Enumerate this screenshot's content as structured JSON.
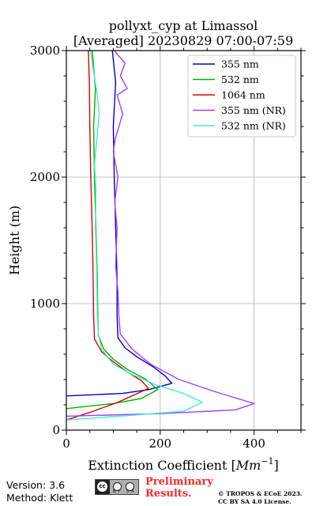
{
  "chart_data": {
    "type": "line",
    "title_line1": "pollyxt_cyp at Limassol",
    "title_line2": "[Averaged] 20230829 07:00-07:59",
    "xlabel": "Extinction Coefficient [",
    "xlabel_unit": "Mm",
    "xlabel_sup": "−1",
    "xlabel_end": "]",
    "ylabel": "Height (m)",
    "xlim": [
      0,
      500
    ],
    "ylim": [
      0,
      3000
    ],
    "xticks": [
      0,
      200,
      400
    ],
    "yticks": [
      0,
      1000,
      2000,
      3000
    ],
    "x_minor_step": 50,
    "y_minor_step": 200,
    "grid": true,
    "legend_position": "top-right",
    "series": [
      {
        "name": "355 nm",
        "color": "#0000cc",
        "points": [
          [
            0,
            270
          ],
          [
            120,
            290
          ],
          [
            175,
            320
          ],
          [
            225,
            370
          ],
          [
            210,
            430
          ],
          [
            185,
            500
          ],
          [
            150,
            580
          ],
          [
            125,
            650
          ],
          [
            110,
            730
          ],
          [
            108,
            900
          ],
          [
            108,
            1200
          ],
          [
            105,
            1600
          ],
          [
            102,
            2000
          ],
          [
            100,
            2400
          ],
          [
            105,
            2750
          ],
          [
            98,
            3000
          ]
        ]
      },
      {
        "name": "532 nm",
        "color": "#00b400",
        "points": [
          [
            0,
            170
          ],
          [
            100,
            210
          ],
          [
            160,
            250
          ],
          [
            195,
            320
          ],
          [
            170,
            400
          ],
          [
            130,
            480
          ],
          [
            100,
            560
          ],
          [
            80,
            640
          ],
          [
            68,
            750
          ],
          [
            67,
            900
          ],
          [
            66,
            1200
          ],
          [
            63,
            1600
          ],
          [
            60,
            2000
          ],
          [
            58,
            2400
          ],
          [
            62,
            2700
          ],
          [
            55,
            3000
          ]
        ]
      },
      {
        "name": "1064 nm",
        "color": "#dd0000",
        "points": [
          [
            0,
            80
          ],
          [
            50,
            140
          ],
          [
            110,
            220
          ],
          [
            175,
            330
          ],
          [
            160,
            390
          ],
          [
            130,
            460
          ],
          [
            100,
            540
          ],
          [
            75,
            620
          ],
          [
            60,
            720
          ],
          [
            58,
            900
          ],
          [
            57,
            1200
          ],
          [
            55,
            1600
          ],
          [
            52,
            2000
          ],
          [
            50,
            2400
          ],
          [
            49,
            2750
          ],
          [
            47,
            3000
          ]
        ]
      },
      {
        "name": "355 nm (NR)",
        "color": "#a040ff",
        "points": [
          [
            0,
            110
          ],
          [
            200,
            130
          ],
          [
            360,
            160
          ],
          [
            400,
            210
          ],
          [
            320,
            300
          ],
          [
            240,
            400
          ],
          [
            180,
            520
          ],
          [
            140,
            640
          ],
          [
            115,
            760
          ],
          [
            112,
            900
          ],
          [
            110,
            1100
          ],
          [
            105,
            1300
          ],
          [
            108,
            1600
          ],
          [
            103,
            1800
          ],
          [
            110,
            2000
          ],
          [
            100,
            2200
          ],
          [
            104,
            2300
          ],
          [
            120,
            2500
          ],
          [
            108,
            2650
          ],
          [
            130,
            2700
          ],
          [
            115,
            2800
          ],
          [
            125,
            2900
          ],
          [
            102,
            3000
          ]
        ]
      },
      {
        "name": "532 nm (NR)",
        "color": "#40f0d0",
        "points": [
          [
            0,
            80
          ],
          [
            150,
            120
          ],
          [
            250,
            150
          ],
          [
            290,
            220
          ],
          [
            250,
            290
          ],
          [
            190,
            360
          ],
          [
            140,
            440
          ],
          [
            100,
            520
          ],
          [
            75,
            640
          ],
          [
            68,
            760
          ],
          [
            66,
            900
          ],
          [
            65,
            1200
          ],
          [
            62,
            1600
          ],
          [
            63,
            1900
          ],
          [
            60,
            2100
          ],
          [
            65,
            2300
          ],
          [
            70,
            2500
          ],
          [
            64,
            2700
          ],
          [
            55,
            2900
          ],
          [
            52,
            3000
          ]
        ]
      }
    ]
  },
  "footer": {
    "version": "Version: 3.6",
    "method": "Method: Klett",
    "prelim_line1": "Preliminary",
    "prelim_line2": "Results.",
    "copyright_line1": "© TROPOS & ECoE 2023.",
    "copyright_line2": "CC BY SA 4.0 License.",
    "cc_glyph": "cc",
    "cc_small": "BY SA"
  }
}
